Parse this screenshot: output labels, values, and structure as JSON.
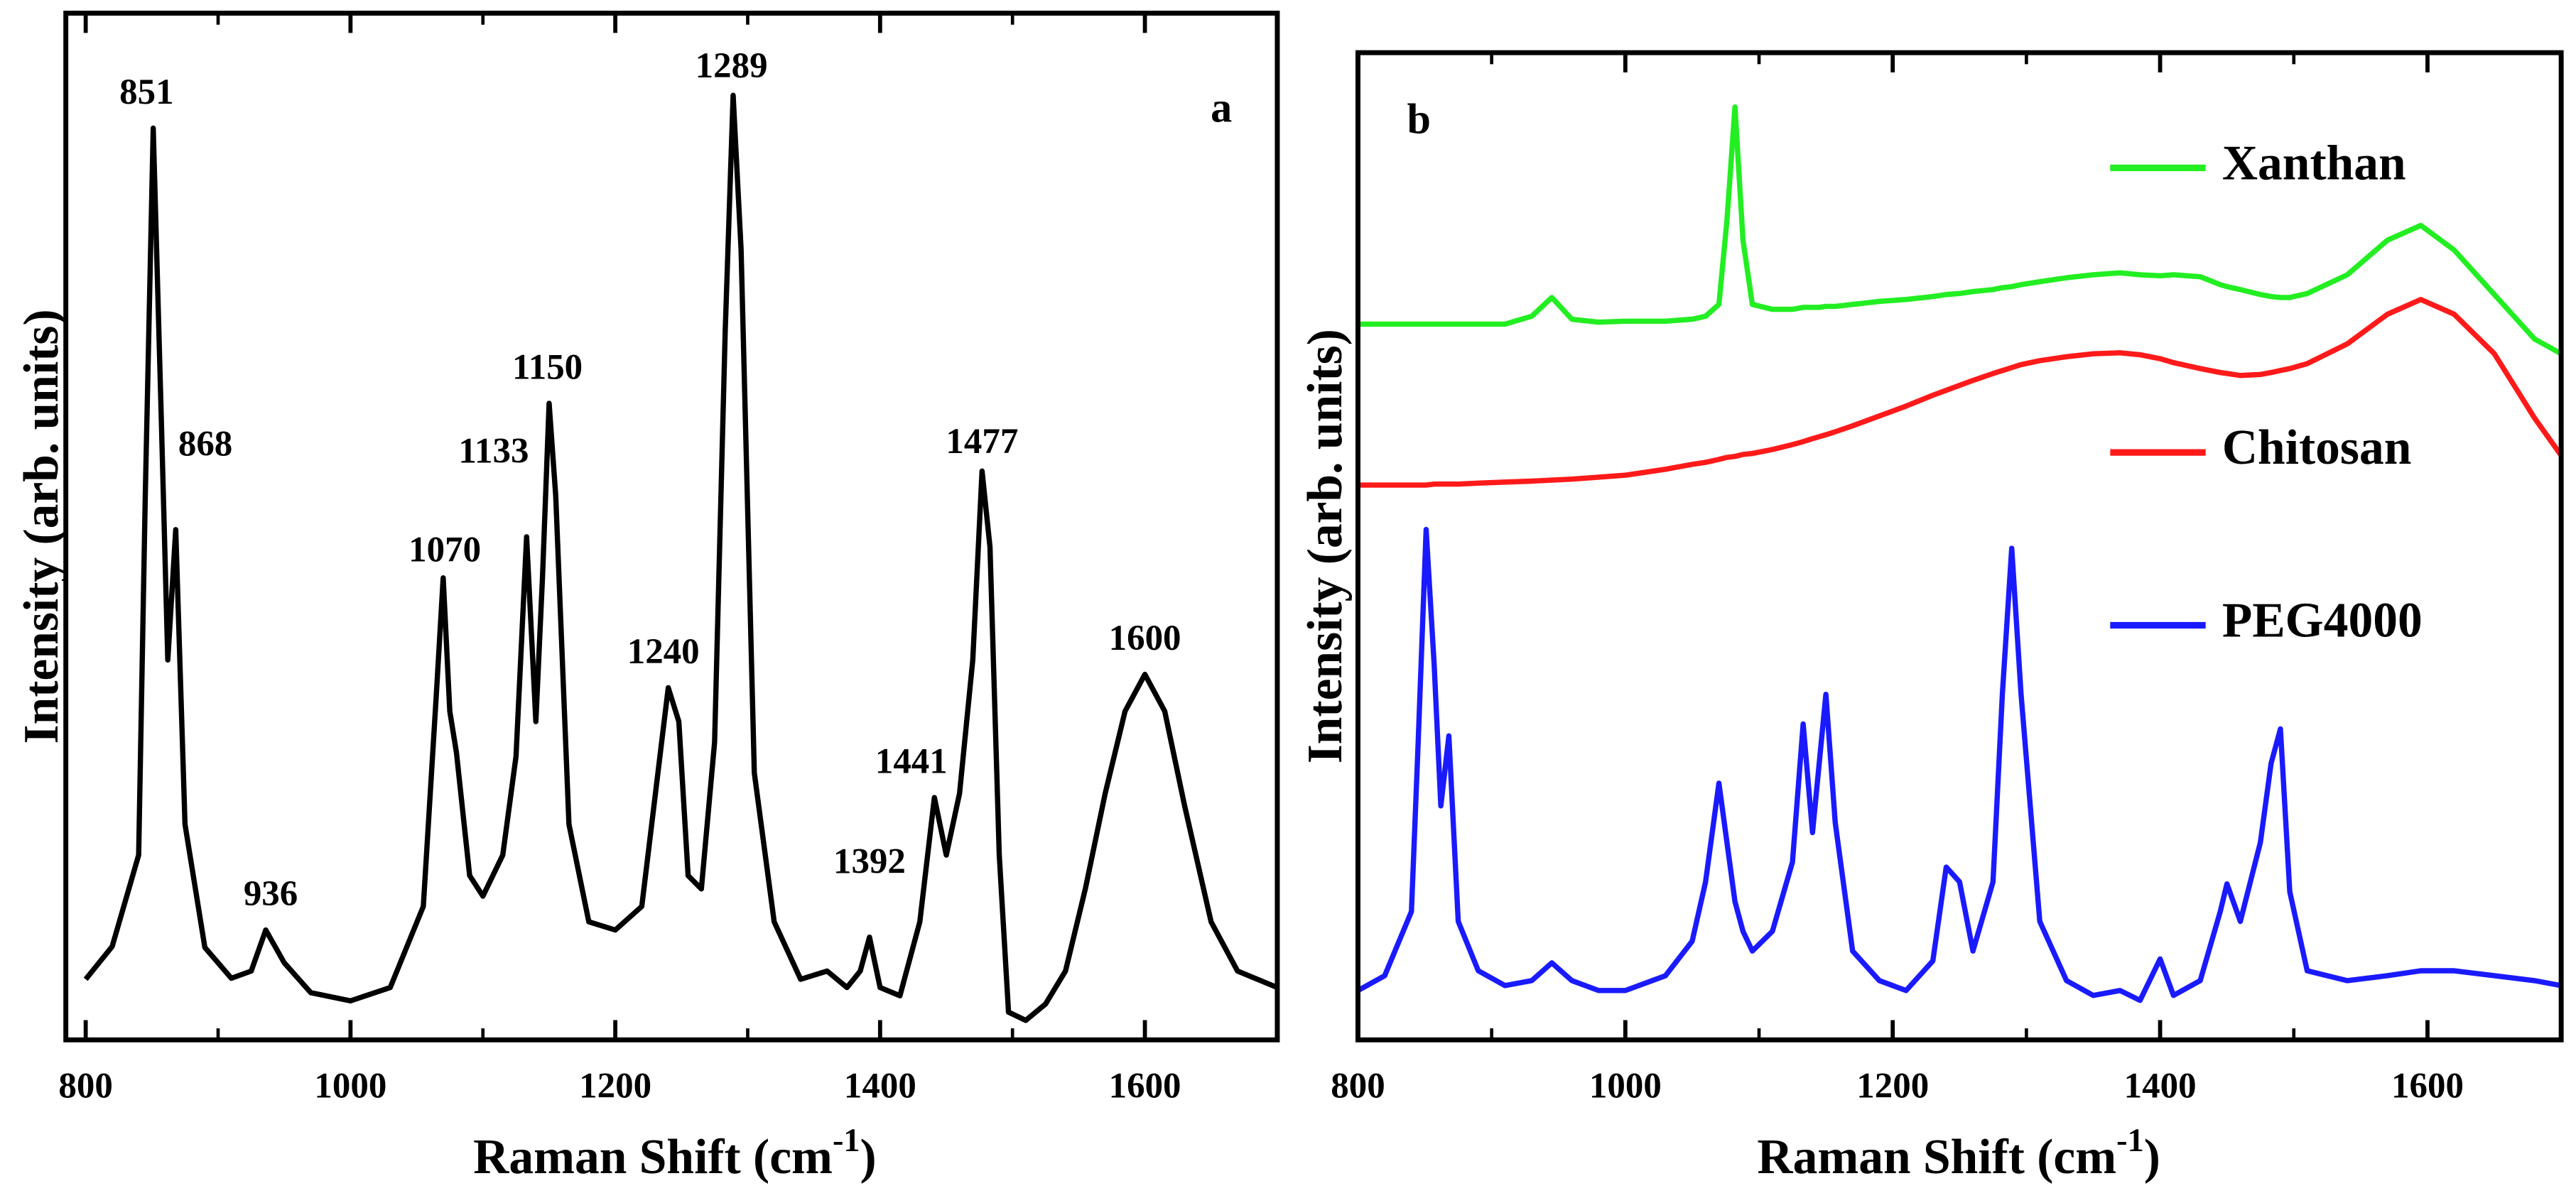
{
  "chart_data": [
    {
      "type": "line",
      "panel_label": "a",
      "x_label": [
        "Raman Shift (cm",
        "-1",
        ")"
      ],
      "y_label": "Intensity (arb. units)",
      "xlim": [
        785,
        1700
      ],
      "ylim": [
        0,
        100
      ],
      "xticks": [
        800,
        1000,
        1200,
        1400,
        1600
      ],
      "xticks_minor": [
        900,
        1100,
        1300,
        1500,
        1700
      ],
      "x": [
        800,
        820,
        840,
        845,
        851,
        857,
        862,
        868,
        875,
        890,
        910,
        925,
        936,
        950,
        970,
        1000,
        1030,
        1055,
        1065,
        1070,
        1075,
        1080,
        1090,
        1100,
        1115,
        1125,
        1133,
        1140,
        1145,
        1150,
        1155,
        1165,
        1180,
        1200,
        1220,
        1235,
        1240,
        1248,
        1255,
        1265,
        1275,
        1283,
        1289,
        1295,
        1305,
        1320,
        1340,
        1360,
        1375,
        1385,
        1392,
        1400,
        1415,
        1430,
        1441,
        1450,
        1460,
        1470,
        1477,
        1483,
        1490,
        1497,
        1510,
        1525,
        1540,
        1555,
        1570,
        1585,
        1600,
        1615,
        1630,
        1650,
        1670,
        1700
      ],
      "series": [
        {
          "color": "#000000",
          "values": [
            5.9,
            9.1,
            18,
            53,
            88.8,
            61,
            37,
            49.7,
            21,
            9,
            6,
            6.7,
            10.7,
            7.5,
            4.6,
            3.8,
            5.1,
            13,
            34,
            45,
            32,
            28,
            16,
            14,
            18,
            27.6,
            49,
            31,
            45,
            62,
            53,
            21,
            11.5,
            10.7,
            13,
            29,
            34.3,
            31,
            16,
            14.7,
            29,
            69,
            92,
            77,
            26,
            11.5,
            5.9,
            6.7,
            5.1,
            6.7,
            10,
            5.1,
            4.3,
            11.5,
            23.6,
            18,
            24,
            37,
            55.4,
            48,
            18,
            2.7,
            1.9,
            3.5,
            6.7,
            14.7,
            24,
            32,
            35.6,
            32,
            22.8,
            11.5,
            6.7,
            5.1
          ]
        }
      ],
      "annotations": [
        {
          "text": "851",
          "x": 851
        },
        {
          "text": "868",
          "x": 868
        },
        {
          "text": "936",
          "x": 936
        },
        {
          "text": "1070",
          "x": 1070
        },
        {
          "text": "1133",
          "x": 1133
        },
        {
          "text": "1150",
          "x": 1150
        },
        {
          "text": "1240",
          "x": 1240
        },
        {
          "text": "1289",
          "x": 1289
        },
        {
          "text": "1392",
          "x": 1392
        },
        {
          "text": "1441",
          "x": 1441
        },
        {
          "text": "1477",
          "x": 1477
        },
        {
          "text": "1600",
          "x": 1600
        }
      ]
    },
    {
      "type": "line",
      "panel_label": "b",
      "x_label": [
        "Raman Shift (cm",
        "-1",
        ")"
      ],
      "y_label": "Intensity (arb. units)",
      "xlim": [
        800,
        1700
      ],
      "ylim": [
        0,
        100
      ],
      "xticks": [
        800,
        1000,
        1200,
        1400,
        1600
      ],
      "xticks_minor": [
        900,
        1100,
        1300,
        1500,
        1700
      ],
      "x": [
        800,
        820,
        840,
        845,
        851,
        857,
        862,
        868,
        875,
        890,
        910,
        930,
        945,
        960,
        980,
        1000,
        1030,
        1050,
        1060,
        1070,
        1076,
        1082,
        1088,
        1095,
        1110,
        1125,
        1133,
        1140,
        1145,
        1150,
        1157,
        1170,
        1190,
        1210,
        1230,
        1240,
        1250,
        1260,
        1275,
        1282,
        1289,
        1296,
        1310,
        1330,
        1350,
        1370,
        1385,
        1400,
        1410,
        1430,
        1445,
        1450,
        1460,
        1475,
        1483,
        1490,
        1497,
        1510,
        1540,
        1570,
        1595,
        1620,
        1650,
        1680,
        1700
      ],
      "series": [
        {
          "name": "Xanthan",
          "color": "#22ee22",
          "values": [
            72.5,
            72.5,
            72.5,
            72.5,
            72.5,
            72.5,
            72.5,
            72.5,
            72.5,
            72.5,
            72.5,
            73.3,
            75.2,
            73,
            72.7,
            72.8,
            72.8,
            73,
            73.3,
            74.5,
            83,
            94.5,
            81,
            74.5,
            74,
            74,
            74.2,
            74.2,
            74.2,
            74.3,
            74.3,
            74.5,
            74.8,
            75,
            75.3,
            75.5,
            75.6,
            75.8,
            76,
            76.2,
            76.3,
            76.5,
            76.8,
            77.2,
            77.5,
            77.7,
            77.5,
            77.4,
            77.5,
            77.3,
            76.5,
            76.3,
            76,
            75.5,
            75.3,
            75.2,
            75.2,
            75.6,
            77.5,
            81,
            82.5,
            80,
            75.5,
            71,
            69.5
          ]
        },
        {
          "name": "Chitosan",
          "color": "#ff1a1a",
          "values": [
            56.2,
            56.2,
            56.2,
            56.2,
            56.2,
            56.3,
            56.3,
            56.3,
            56.3,
            56.4,
            56.5,
            56.6,
            56.7,
            56.8,
            57,
            57.2,
            57.8,
            58.3,
            58.5,
            58.8,
            59,
            59.1,
            59.3,
            59.4,
            59.8,
            60.3,
            60.6,
            60.9,
            61.1,
            61.3,
            61.6,
            62.2,
            63.2,
            64.2,
            65.3,
            65.8,
            66.3,
            66.8,
            67.5,
            67.8,
            68.1,
            68.4,
            68.8,
            69.2,
            69.5,
            69.6,
            69.4,
            69,
            68.6,
            68,
            67.6,
            67.5,
            67.3,
            67.4,
            67.6,
            67.8,
            68,
            68.5,
            70.5,
            73.5,
            75,
            73.5,
            69.5,
            63,
            59.2
          ]
        },
        {
          "name": "PEG4000",
          "color": "#1a1aff",
          "values": [
            5,
            6.5,
            13,
            30,
            51.7,
            38,
            23.7,
            30.8,
            12,
            7,
            5.5,
            6,
            7.8,
            6,
            5,
            5,
            6.5,
            10,
            16,
            26,
            20,
            14,
            11,
            9,
            11,
            18,
            32,
            21,
            28,
            35,
            22,
            9,
            6,
            5,
            8,
            17.5,
            16,
            9,
            16,
            35,
            49.8,
            35,
            12,
            6,
            4.5,
            5,
            4,
            8.2,
            4.5,
            6,
            13,
            15.8,
            12,
            20,
            28,
            31.5,
            15,
            7,
            6,
            6.5,
            7,
            7,
            6.5,
            6,
            5.5
          ]
        }
      ]
    }
  ]
}
